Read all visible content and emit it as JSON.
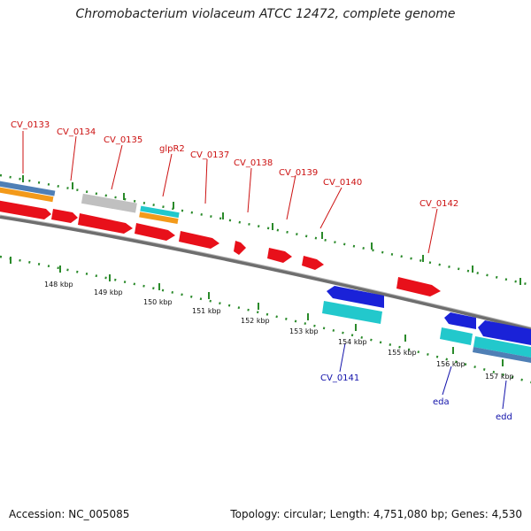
{
  "title": "Chromobacterium violaceum ATCC 12472, complete genome",
  "footer": {
    "accession": "Accession: NC_005085",
    "summary": "Topology: circular; Length: 4,751,080 bp; Genes: 4,530"
  },
  "colors": {
    "forward_cds": "#e8101a",
    "reverse_cds": "#1a22d8",
    "rna_cyan": "#22c8cc",
    "orange": "#f39a1a",
    "steel_blue": "#4f7fb5",
    "pseudo_gray": "#c0c0c0",
    "backbone": "#808080",
    "tick_green": "#2a8a2a",
    "label_red": "#cc1111",
    "label_blue": "#1111aa"
  },
  "labels_forward": [
    "CV_0133",
    "CV_0134",
    "CV_0135",
    "glpR2",
    "CV_0137",
    "CV_0138",
    "CV_0139",
    "CV_0140",
    "CV_0142"
  ],
  "labels_reverse": [
    "CV_0141",
    "eda",
    "edd"
  ],
  "kbp_ticks": [
    "148 kbp",
    "149 kbp",
    "150 kbp",
    "151 kbp",
    "152 kbp",
    "153 kbp",
    "154 kbp",
    "155 kbp",
    "156 kbp",
    "157 kbp"
  ]
}
